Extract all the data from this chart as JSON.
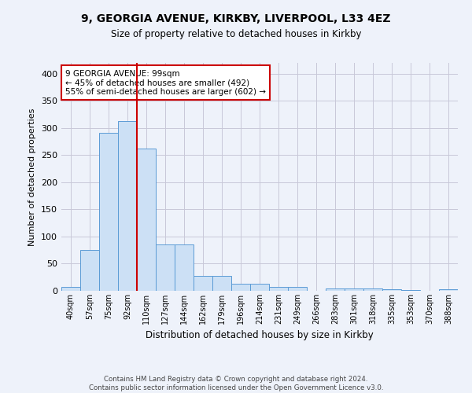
{
  "title": "9, GEORGIA AVENUE, KIRKBY, LIVERPOOL, L33 4EZ",
  "subtitle": "Size of property relative to detached houses in Kirkby",
  "xlabel": "Distribution of detached houses by size in Kirkby",
  "ylabel": "Number of detached properties",
  "footer_line1": "Contains HM Land Registry data © Crown copyright and database right 2024.",
  "footer_line2": "Contains public sector information licensed under the Open Government Licence v3.0.",
  "bar_labels": [
    "40sqm",
    "57sqm",
    "75sqm",
    "92sqm",
    "110sqm",
    "127sqm",
    "144sqm",
    "162sqm",
    "179sqm",
    "196sqm",
    "214sqm",
    "231sqm",
    "249sqm",
    "266sqm",
    "283sqm",
    "301sqm",
    "318sqm",
    "335sqm",
    "353sqm",
    "370sqm",
    "388sqm"
  ],
  "bar_values": [
    7,
    76,
    291,
    313,
    262,
    85,
    85,
    27,
    27,
    13,
    13,
    7,
    7,
    0,
    5,
    5,
    4,
    3,
    1,
    0,
    3
  ],
  "bar_color": "#cce0f5",
  "bar_edge_color": "#5b9bd5",
  "grid_color": "#c8c8d8",
  "background_color": "#eef2fa",
  "vline_color": "#cc0000",
  "vline_x_index": 3,
  "annotation_text": "9 GEORGIA AVENUE: 99sqm\n← 45% of detached houses are smaller (492)\n55% of semi-detached houses are larger (602) →",
  "annotation_box_color": "#ffffff",
  "annotation_box_edge": "#cc0000",
  "ylim": [
    0,
    420
  ],
  "yticks": [
    0,
    50,
    100,
    150,
    200,
    250,
    300,
    350,
    400
  ]
}
